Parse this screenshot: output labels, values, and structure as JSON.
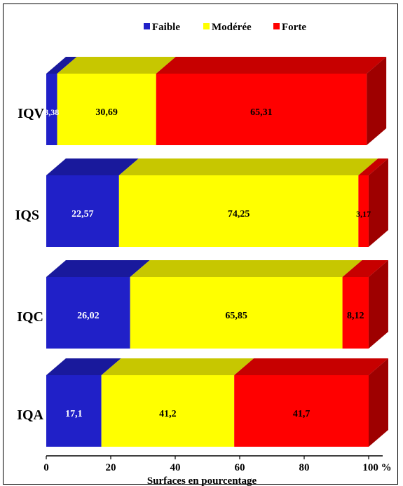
{
  "chart_data": {
    "type": "bar",
    "stacked": true,
    "orientation": "horizontal",
    "three_d": true,
    "categories": [
      "IQV",
      "IQS",
      "IQC",
      "IQA"
    ],
    "series": [
      {
        "name": "Faible",
        "color": "#2020c8",
        "values": [
          3.38,
          22.57,
          26.02,
          17.1
        ],
        "labels": [
          "3,38",
          "22,57",
          "26,02",
          "17,1"
        ]
      },
      {
        "name": "Modérée",
        "color": "#ffff00",
        "values": [
          30.69,
          74.25,
          65.85,
          41.2
        ],
        "labels": [
          "30,69",
          "74,25",
          "65,85",
          "41,2"
        ]
      },
      {
        "name": "Forte",
        "color": "#ff0000",
        "values": [
          65.31,
          3.17,
          8.12,
          41.7
        ],
        "labels": [
          "65,31",
          "3,17",
          "8,12",
          "41,7"
        ]
      }
    ],
    "x_ticks": [
      "0",
      "20",
      "40",
      "60",
      "80",
      "100 %"
    ],
    "xlim": [
      0,
      100
    ],
    "xlabel": "Surfaces en pourcentage",
    "legend_position": "top",
    "grid": false
  }
}
